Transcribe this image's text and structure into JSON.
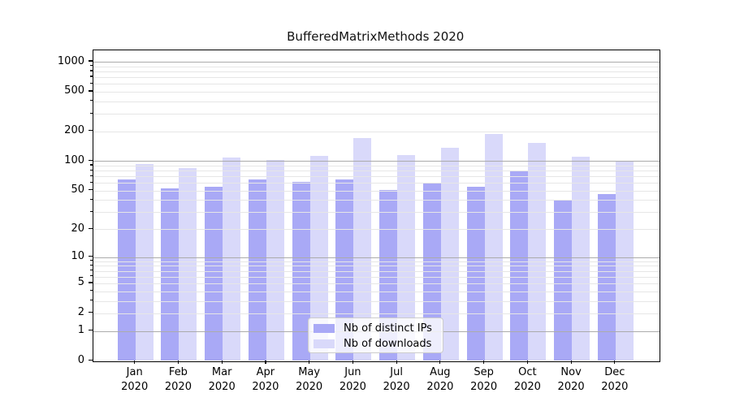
{
  "chart_data": {
    "type": "bar",
    "title": "BufferedMatrixMethods 2020",
    "categories": [
      "Jan",
      "Feb",
      "Mar",
      "Apr",
      "May",
      "Jun",
      "Jul",
      "Aug",
      "Sep",
      "Oct",
      "Nov",
      "Dec"
    ],
    "category_year": "2020",
    "series": [
      {
        "name": "Nb of distinct IPs",
        "color": "#a9a9f6",
        "values": [
          65,
          53,
          55,
          65,
          62,
          65,
          51,
          60,
          55,
          78,
          40,
          46
        ]
      },
      {
        "name": "Nb of downloads",
        "color": "#d9d9fa",
        "values": [
          94,
          85,
          109,
          102,
          113,
          171,
          116,
          136,
          188,
          154,
          111,
          99
        ]
      }
    ],
    "yscale": "log1p",
    "yticks": [
      0,
      1,
      2,
      5,
      10,
      20,
      50,
      100,
      200,
      500,
      1000
    ],
    "major_yticks": [
      1,
      10,
      100,
      1000
    ],
    "ylim": [
      0,
      1300
    ],
    "grid": "horizontal, major and minor, drawn over bars",
    "legend": {
      "position": "lower center",
      "entries": [
        "Nb of distinct IPs",
        "Nb of downloads"
      ]
    },
    "colors": {
      "bar_distinct_ips": "#a9a9f6",
      "bar_downloads": "#d9d9fa",
      "major_grid": "#ababab",
      "minor_grid": "#e6e6e6",
      "axis": "#000000",
      "legend_border": "#cccccc",
      "background": "#ffffff"
    }
  }
}
